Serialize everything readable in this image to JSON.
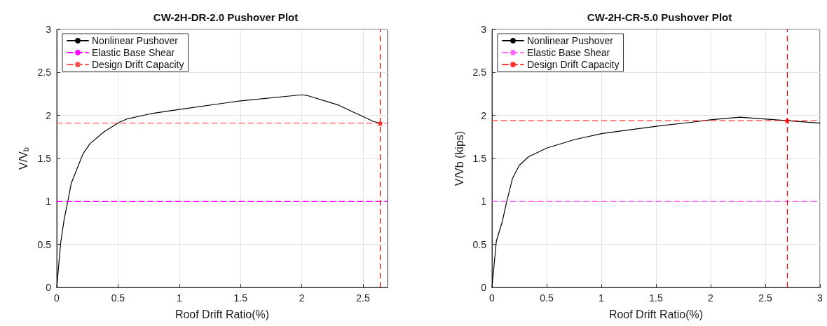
{
  "chart_data": [
    {
      "type": "line",
      "title": "CW-2H-DR-2.0 Pushover Plot",
      "xlabel": "Roof Drift Ratio(%)",
      "ylabel": "V/V$_{b}$",
      "xlim": [
        0,
        2.7
      ],
      "xticks": [
        0,
        0.5,
        1,
        1.5,
        2,
        2.5
      ],
      "ylim": [
        0,
        3
      ],
      "yticks": [
        0,
        0.5,
        1,
        1.5,
        2,
        2.5,
        3
      ],
      "grid": true,
      "legend": "top left",
      "series": [
        {
          "name": "Nonlinear Pushover",
          "color": "#000000",
          "line_style": "solid",
          "marker": "none",
          "x": [
            0,
            0.032,
            0.06,
            0.09,
            0.118,
            0.213,
            0.27,
            0.385,
            0.51,
            0.575,
            0.766,
            1.0,
            1.4,
            1.5,
            2.0,
            2.05,
            2.3,
            2.585,
            2.64
          ],
          "values": [
            0,
            0.52,
            0.79,
            1.0,
            1.21,
            1.55,
            1.67,
            1.81,
            1.92,
            1.96,
            2.02,
            2.07,
            2.15,
            2.17,
            2.24,
            2.23,
            2.12,
            1.93,
            1.91
          ]
        },
        {
          "name": "Elastic Base Shear",
          "color": "#ff00ff",
          "line_style": "dashed",
          "marker": "none",
          "x": [
            0,
            2.7
          ],
          "values": [
            1,
            1
          ]
        },
        {
          "name": "Design Drift Capacity",
          "color": "#ff5555",
          "line_style": "dashed",
          "marker": "none",
          "x": [
            0,
            2.7
          ],
          "values": [
            1.91,
            1.91
          ]
        },
        {
          "type": "scatter",
          "color": "#ff0000",
          "marker": "star",
          "x": [
            2.64
          ],
          "values": [
            1.91
          ]
        }
      ],
      "ref_lines": [
        {
          "axis": "x",
          "value": 2.64,
          "color": "#ff0000",
          "line_style": "dashed"
        }
      ]
    },
    {
      "type": "line",
      "title": "CW-2H-CR-5.0 Pushover Plot",
      "xlabel": "Roof Drift Ratio(%)",
      "ylabel": "V/Vb (kips)",
      "xlim": [
        0,
        3
      ],
      "xticks": [
        0,
        0.5,
        1,
        1.5,
        2,
        2.5,
        3
      ],
      "ylim": [
        0,
        3
      ],
      "yticks": [
        0,
        0.5,
        1,
        1.5,
        2,
        2.5,
        3
      ],
      "grid": true,
      "legend": "top left",
      "series": [
        {
          "name": "Nonlinear Pushover",
          "color": "#000000",
          "line_style": "solid",
          "marker": "none",
          "x": [
            0,
            0.04,
            0.093,
            0.135,
            0.188,
            0.25,
            0.335,
            0.5,
            0.757,
            1.01,
            1.54,
            1.82,
            2.0,
            2.27,
            2.7,
            3.0
          ],
          "values": [
            0,
            0.54,
            0.76,
            1.0,
            1.27,
            1.42,
            1.52,
            1.62,
            1.72,
            1.79,
            1.88,
            1.92,
            1.95,
            1.98,
            1.94,
            1.91
          ]
        },
        {
          "name": "Elastic Base Shear",
          "color": "#ff66ff",
          "line_style": "dashed",
          "marker": "none",
          "x": [
            0,
            3
          ],
          "values": [
            1,
            1
          ]
        },
        {
          "name": "Design Drift Capacity",
          "color": "#ff3333",
          "line_style": "dashed",
          "marker": "none",
          "x": [
            0,
            3
          ],
          "values": [
            1.94,
            1.94
          ]
        },
        {
          "type": "scatter",
          "color": "#ff0000",
          "marker": "star",
          "x": [
            2.7
          ],
          "values": [
            1.94
          ]
        }
      ],
      "ref_lines": [
        {
          "axis": "x",
          "value": 2.7,
          "color": "#ff0000",
          "line_style": "dashed"
        }
      ]
    }
  ]
}
